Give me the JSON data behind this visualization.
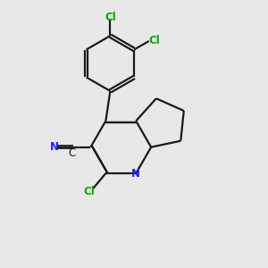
{
  "background_color": "#e8e8e8",
  "bond_color": "#1a1a1a",
  "nitrogen_color": "#2020ff",
  "chlorine_color": "#00aa00",
  "line_width": 1.6,
  "figsize": [
    3.0,
    3.0
  ],
  "dpi": 100,
  "xlim": [
    0,
    10
  ],
  "ylim": [
    0,
    10
  ]
}
